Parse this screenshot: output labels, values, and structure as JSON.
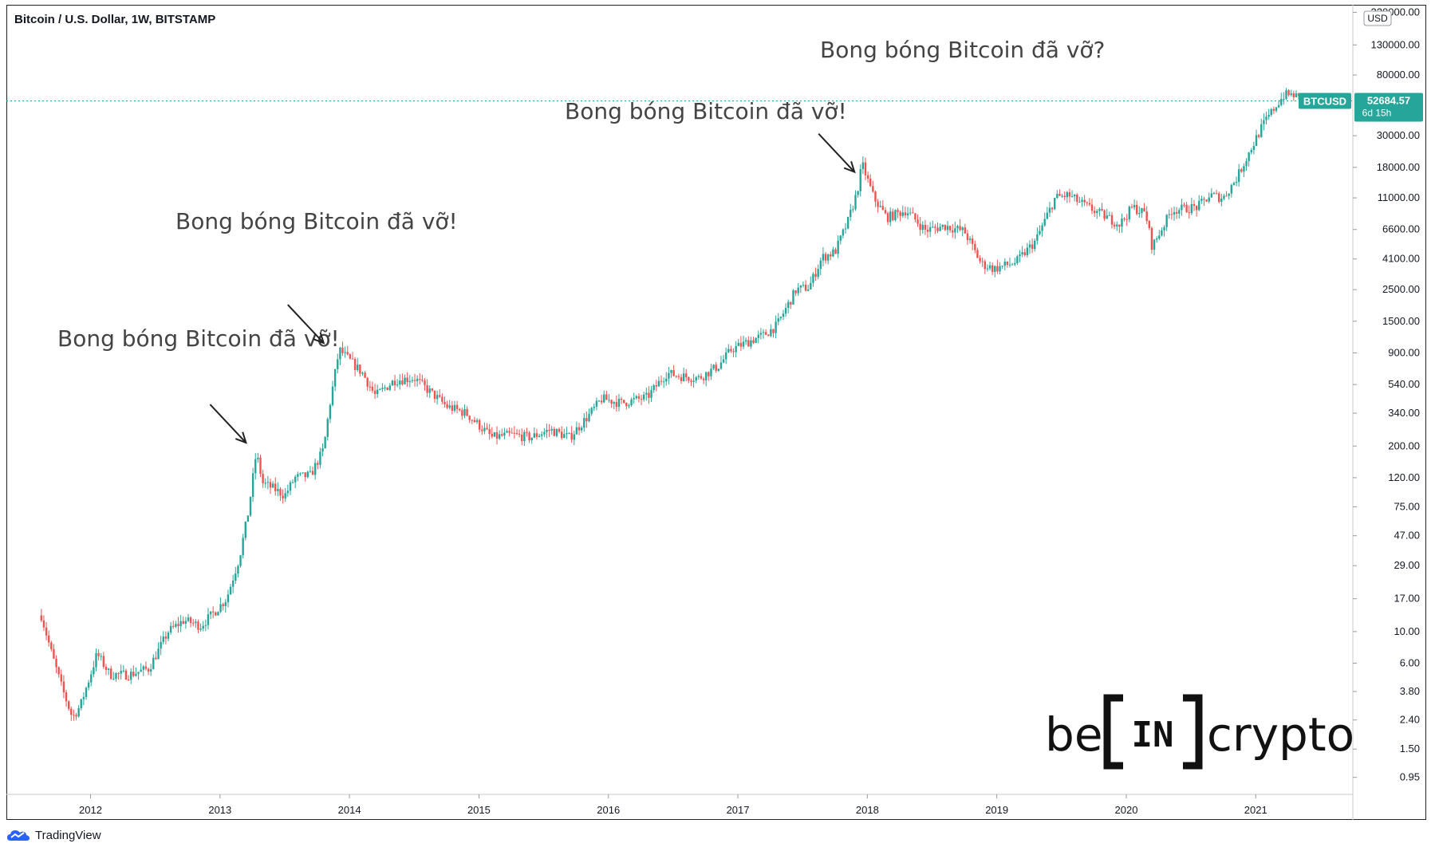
{
  "header": {
    "symbol_title": "Bitcoin / U.S. Dollar, 1W, BITSTAMP"
  },
  "footer": {
    "brand": "TradingView"
  },
  "colors": {
    "up": "#26a69a",
    "down": "#ef5350",
    "price_line": "#26a69a",
    "text": "#444444",
    "axis_text": "#131722"
  },
  "watermark": {
    "brand_text": "be[IN]crypto",
    "left": "be",
    "middle": "IN",
    "right": "crypto"
  },
  "price_label": {
    "symbol": "BTCUSD",
    "price": "52684.57",
    "countdown": "6d 15h"
  },
  "annotations": [
    {
      "text": "Bong bóng Bitcoin đã vỡ!",
      "arrow": true,
      "target_year": 2013.25,
      "target_price": 240
    },
    {
      "text": "Bong bóng Bitcoin đã vỡ!",
      "arrow": true,
      "target_year": 2013.85,
      "target_price": 1200
    },
    {
      "text": "Bong bóng Bitcoin đã vỡ!",
      "arrow": true,
      "target_year": 2017.95,
      "target_price": 19000
    },
    {
      "text": "Bong bóng Bitcoin đã vỡ?",
      "arrow": false
    }
  ],
  "chart_data": {
    "type": "candlestick",
    "title": "Bitcoin / U.S. Dollar, 1W, BITSTAMP",
    "y_scale": "log",
    "y_unit": "USD",
    "ylim": [
      0.8,
      230000
    ],
    "xlim": [
      2011.35,
      2021.75
    ],
    "x_ticks": [
      "2012",
      "2013",
      "2014",
      "2015",
      "2016",
      "2017",
      "2018",
      "2019",
      "2020",
      "2021"
    ],
    "y_ticks": [
      "220000.00",
      "130000.00",
      "80000.00",
      "30000.00",
      "18000.00",
      "11000.00",
      "6600.00",
      "4100.00",
      "2500.00",
      "1500.00",
      "900.00",
      "540.00",
      "340.00",
      "200.00",
      "120.00",
      "75.00",
      "47.00",
      "29.00",
      "17.00",
      "10.00",
      "6.00",
      "3.80",
      "2.40",
      "1.50",
      "0.95"
    ],
    "last_price": 52684.57,
    "price_path": [
      [
        2011.62,
        13
      ],
      [
        2011.7,
        7
      ],
      [
        2011.78,
        4
      ],
      [
        2011.86,
        2.5
      ],
      [
        2011.92,
        3
      ],
      [
        2012.0,
        5
      ],
      [
        2012.05,
        7
      ],
      [
        2012.15,
        5
      ],
      [
        2012.3,
        5
      ],
      [
        2012.45,
        5.5
      ],
      [
        2012.6,
        10
      ],
      [
        2012.72,
        12
      ],
      [
        2012.85,
        11
      ],
      [
        2012.95,
        13.5
      ],
      [
        2013.05,
        17
      ],
      [
        2013.15,
        33
      ],
      [
        2013.22,
        70
      ],
      [
        2013.28,
        180
      ],
      [
        2013.33,
        110
      ],
      [
        2013.42,
        100
      ],
      [
        2013.5,
        90
      ],
      [
        2013.58,
        120
      ],
      [
        2013.7,
        125
      ],
      [
        2013.8,
        190
      ],
      [
        2013.85,
        400
      ],
      [
        2013.92,
        950
      ],
      [
        2014.0,
        800
      ],
      [
        2014.1,
        650
      ],
      [
        2014.2,
        450
      ],
      [
        2014.35,
        580
      ],
      [
        2014.5,
        600
      ],
      [
        2014.6,
        500
      ],
      [
        2014.75,
        380
      ],
      [
        2014.9,
        340
      ],
      [
        2015.0,
        280
      ],
      [
        2015.1,
        230
      ],
      [
        2015.25,
        240
      ],
      [
        2015.4,
        230
      ],
      [
        2015.55,
        260
      ],
      [
        2015.7,
        230
      ],
      [
        2015.85,
        330
      ],
      [
        2015.95,
        430
      ],
      [
        2016.1,
        400
      ],
      [
        2016.3,
        440
      ],
      [
        2016.45,
        650
      ],
      [
        2016.55,
        620
      ],
      [
        2016.7,
        600
      ],
      [
        2016.85,
        730
      ],
      [
        2016.95,
        950
      ],
      [
        2017.1,
        1100
      ],
      [
        2017.2,
        1200
      ],
      [
        2017.3,
        1400
      ],
      [
        2017.45,
        2500
      ],
      [
        2017.55,
        2600
      ],
      [
        2017.65,
        4200
      ],
      [
        2017.75,
        4600
      ],
      [
        2017.85,
        7500
      ],
      [
        2017.92,
        12000
      ],
      [
        2017.96,
        19000
      ],
      [
        2018.05,
        11000
      ],
      [
        2018.15,
        8000
      ],
      [
        2018.3,
        9000
      ],
      [
        2018.45,
        6500
      ],
      [
        2018.6,
        7000
      ],
      [
        2018.75,
        6400
      ],
      [
        2018.88,
        3800
      ],
      [
        2018.98,
        3500
      ],
      [
        2019.15,
        3900
      ],
      [
        2019.3,
        5500
      ],
      [
        2019.45,
        11000
      ],
      [
        2019.55,
        11500
      ],
      [
        2019.7,
        9500
      ],
      [
        2019.8,
        8500
      ],
      [
        2019.95,
        7200
      ],
      [
        2020.05,
        9500
      ],
      [
        2020.15,
        8500
      ],
      [
        2020.2,
        5000
      ],
      [
        2020.35,
        9000
      ],
      [
        2020.55,
        9500
      ],
      [
        2020.65,
        11500
      ],
      [
        2020.75,
        11000
      ],
      [
        2020.85,
        15000
      ],
      [
        2020.95,
        23000
      ],
      [
        2021.05,
        35000
      ],
      [
        2021.15,
        48000
      ],
      [
        2021.22,
        58000
      ],
      [
        2021.3,
        58000
      ],
      [
        2021.35,
        52684.57
      ]
    ]
  }
}
